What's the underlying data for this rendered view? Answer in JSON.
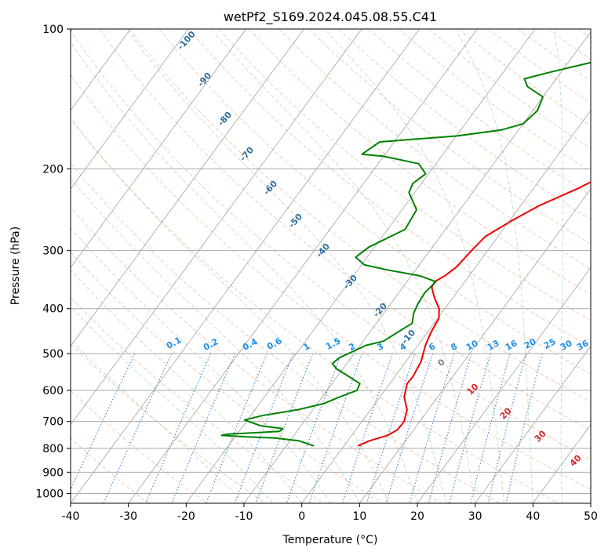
{
  "chart_data": {
    "type": "line",
    "title": "wetPf2_S169.2024.045.08.55.C41",
    "xlabel": "Temperature (°C)",
    "ylabel": "Pressure (hPa)",
    "xlim": [
      -40,
      50
    ],
    "ylim": [
      1050,
      100
    ],
    "y_scale": "log",
    "x_ticks": [
      -40,
      -30,
      -20,
      -10,
      0,
      10,
      20,
      30,
      40,
      50
    ],
    "y_ticks": [
      100,
      200,
      300,
      400,
      500,
      600,
      700,
      800,
      900,
      1000
    ],
    "grid": true,
    "colors": {
      "temperature": "#ee0000",
      "dewpoint": "#008000",
      "dry_adiabat": "#f4a582",
      "moist_adiabat": "#98d298",
      "mixing_ratio": "#1f77d0",
      "isotherm": "#8c8c8c"
    },
    "series": [
      {
        "values": [
          {
            "p": 790,
            "t": 2.4
          },
          {
            "p": 770,
            "t": 3.8
          },
          {
            "p": 750,
            "t": 6.2
          },
          {
            "p": 730,
            "t": 7.2
          },
          {
            "p": 700,
            "t": 7.3
          },
          {
            "p": 660,
            "t": 6.3
          },
          {
            "p": 620,
            "t": 4.2
          },
          {
            "p": 580,
            "t": 3.0
          },
          {
            "p": 560,
            "t": 3.1
          },
          {
            "p": 520,
            "t": 2.6
          },
          {
            "p": 480,
            "t": 1.3
          },
          {
            "p": 450,
            "t": 0.6
          },
          {
            "p": 420,
            "t": 0.2
          },
          {
            "p": 400,
            "t": -1.0
          },
          {
            "p": 380,
            "t": -3.1
          },
          {
            "p": 360,
            "t": -5.0
          },
          {
            "p": 350,
            "t": -5.2
          },
          {
            "p": 340,
            "t": -4.2
          },
          {
            "p": 325,
            "t": -3.3
          },
          {
            "p": 300,
            "t": -2.8
          },
          {
            "p": 280,
            "t": -2.2
          },
          {
            "p": 260,
            "t": 0.2
          },
          {
            "p": 240,
            "t": 3.2
          },
          {
            "p": 220,
            "t": 7.8
          },
          {
            "p": 200,
            "t": 12.0
          },
          {
            "p": 180,
            "t": 15.5
          },
          {
            "p": 165,
            "t": 17.0
          },
          {
            "p": 150,
            "t": 19.5
          },
          {
            "p": 140,
            "t": 22.5
          },
          {
            "p": 130,
            "t": 26.0
          },
          {
            "p": 120,
            "t": 28.5
          },
          {
            "p": 110,
            "t": 30.5
          },
          {
            "p": 100,
            "t": 31.3
          }
        ]
      },
      {
        "values": [
          {
            "p": 790,
            "t": -5.2
          },
          {
            "p": 770,
            "t": -8.5
          },
          {
            "p": 760,
            "t": -13.0
          },
          {
            "p": 755,
            "t": -18.5
          },
          {
            "p": 750,
            "t": -22.5
          },
          {
            "p": 745,
            "t": -21.5
          },
          {
            "p": 740,
            "t": -17.0
          },
          {
            "p": 735,
            "t": -13.0
          },
          {
            "p": 725,
            "t": -12.8
          },
          {
            "p": 715,
            "t": -17.0
          },
          {
            "p": 695,
            "t": -20.5
          },
          {
            "p": 680,
            "t": -18.0
          },
          {
            "p": 660,
            "t": -12.5
          },
          {
            "p": 640,
            "t": -8.8
          },
          {
            "p": 620,
            "t": -7.0
          },
          {
            "p": 600,
            "t": -4.8
          },
          {
            "p": 580,
            "t": -5.2
          },
          {
            "p": 560,
            "t": -8.0
          },
          {
            "p": 540,
            "t": -11.0
          },
          {
            "p": 525,
            "t": -12.5
          },
          {
            "p": 510,
            "t": -12.0
          },
          {
            "p": 495,
            "t": -10.5
          },
          {
            "p": 480,
            "t": -9.0
          },
          {
            "p": 470,
            "t": -6.5
          },
          {
            "p": 450,
            "t": -5.2
          },
          {
            "p": 430,
            "t": -3.8
          },
          {
            "p": 410,
            "t": -4.8
          },
          {
            "p": 390,
            "t": -5.3
          },
          {
            "p": 370,
            "t": -5.5
          },
          {
            "p": 350,
            "t": -5.0
          },
          {
            "p": 340,
            "t": -8.5
          },
          {
            "p": 330,
            "t": -15.0
          },
          {
            "p": 322,
            "t": -19.5
          },
          {
            "p": 310,
            "t": -22.0
          },
          {
            "p": 295,
            "t": -21.0
          },
          {
            "p": 270,
            "t": -17.0
          },
          {
            "p": 245,
            "t": -17.5
          },
          {
            "p": 225,
            "t": -21.0
          },
          {
            "p": 215,
            "t": -21.5
          },
          {
            "p": 205,
            "t": -20.5
          },
          {
            "p": 195,
            "t": -23.0
          },
          {
            "p": 188,
            "t": -30.0
          },
          {
            "p": 186,
            "t": -34.0
          },
          {
            "p": 175,
            "t": -32.5
          },
          {
            "p": 170,
            "t": -20.0
          },
          {
            "p": 165,
            "t": -13.0
          },
          {
            "p": 160,
            "t": -10.0
          },
          {
            "p": 150,
            "t": -9.2
          },
          {
            "p": 140,
            "t": -10.0
          },
          {
            "p": 133,
            "t": -14.0
          },
          {
            "p": 128,
            "t": -15.5
          },
          {
            "p": 124,
            "t": -12.0
          },
          {
            "p": 118,
            "t": -6.0
          },
          {
            "p": 112,
            "t": -2.0
          },
          {
            "p": 106,
            "t": 0.5
          },
          {
            "p": 100,
            "t": 1.3
          }
        ]
      }
    ],
    "dry_adiabat_labels": [
      "-100",
      "-90",
      "-80",
      "-70",
      "-60",
      "-50",
      "-40",
      "-30",
      "-20",
      "-10"
    ],
    "moist_adiabat_labels": [
      "0",
      "10",
      "20",
      "30",
      "40"
    ],
    "mixing_ratio_labels": [
      "0.1",
      "0.2",
      "0.4",
      "0.6",
      "1",
      "1.5",
      "2",
      "3",
      "4",
      "6",
      "8",
      "10",
      "13",
      "16",
      "20",
      "25",
      "30",
      "36"
    ]
  }
}
